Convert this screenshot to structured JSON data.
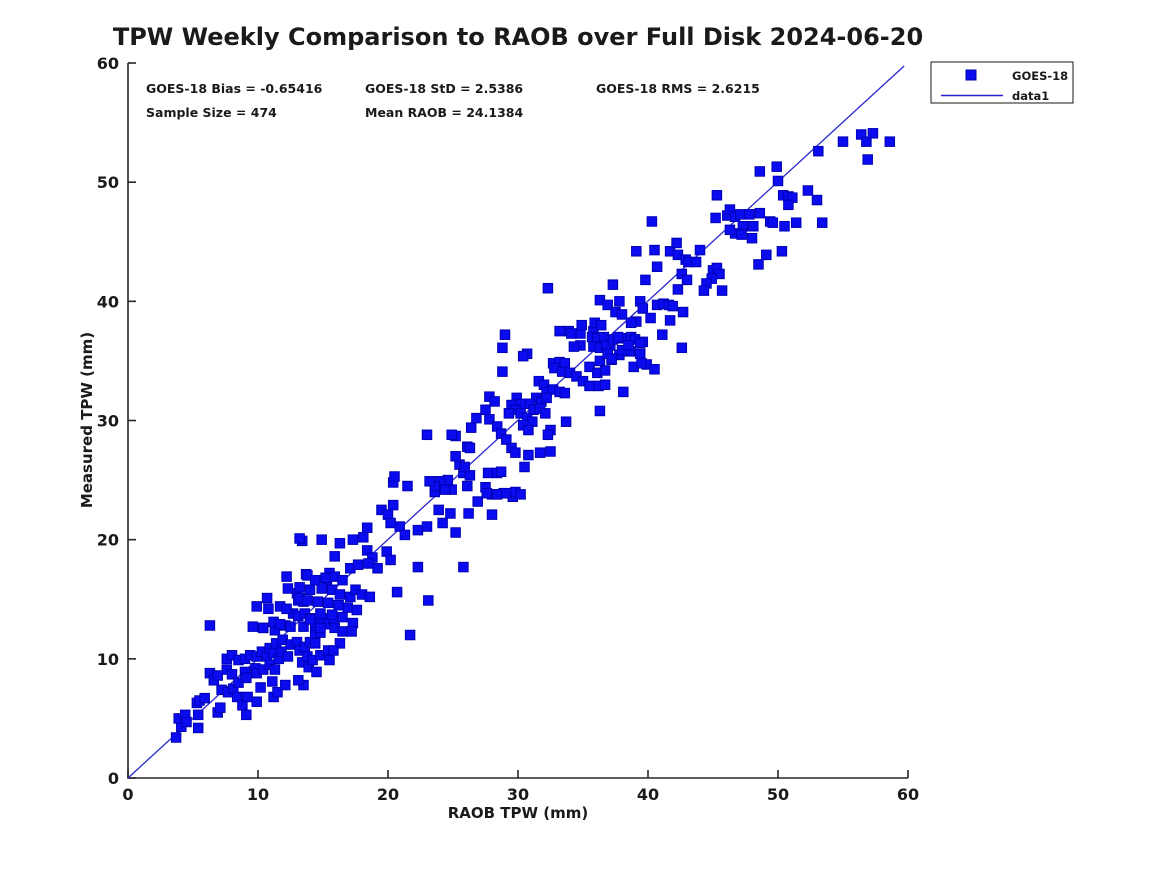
{
  "chart": {
    "title": "TPW Weekly Comparison to RAOB over Full Disk 2024-06-20"
  },
  "stats": {
    "bias": "GOES-18 Bias = -0.65416",
    "std": "GOES-18 StD = 2.5386",
    "rms": "GOES-18 RMS = 2.6215",
    "sample_size": "Sample Size = 474",
    "mean_raob": "Mean RAOB = 24.1384"
  },
  "legend": [
    {
      "label": "GOES-18",
      "marker": "square"
    },
    {
      "label": "data1",
      "marker": "line"
    }
  ],
  "colors": {
    "marker_fill": "#0b0bf0",
    "marker_edge": "#0000b4",
    "line": "#2727cf",
    "axis": "#262626",
    "text": "#1a1a1a"
  },
  "axes": {
    "x": {
      "label": "RAOB TPW (mm)",
      "min": 0,
      "max": 60,
      "ticks": [
        0,
        10,
        20,
        30,
        40,
        50,
        60
      ]
    },
    "y": {
      "label": "Measured TPW (mm)",
      "min": 0,
      "max": 60,
      "ticks": [
        0,
        10,
        20,
        30,
        40,
        50,
        60
      ]
    }
  },
  "chart_data": {
    "type": "scatter",
    "title": "TPW Weekly Comparison to RAOB over Full Disk 2024-06-20",
    "xlabel": "RAOB TPW (mm)",
    "ylabel": "Measured TPW (mm)",
    "xlim": [
      0,
      60
    ],
    "ylim": [
      0,
      60
    ],
    "grid": false,
    "legend_position": "top-right-outside",
    "series_name": "GOES-18",
    "identity_line": {
      "name": "data1",
      "x": [
        0,
        59.7
      ],
      "y": [
        0,
        59.75
      ]
    },
    "points": [
      [
        3.7,
        3.4
      ],
      [
        4.1,
        4.3
      ],
      [
        3.9,
        5.0
      ],
      [
        4.4,
        5.3
      ],
      [
        4.5,
        4.7
      ],
      [
        5.4,
        4.2
      ],
      [
        5.4,
        5.3
      ],
      [
        5.3,
        6.3
      ],
      [
        5.5,
        6.5
      ],
      [
        5.9,
        6.7
      ],
      [
        6.3,
        8.8
      ],
      [
        6.6,
        8.2
      ],
      [
        6.9,
        8.6
      ],
      [
        6.9,
        5.5
      ],
      [
        7.1,
        5.9
      ],
      [
        7.2,
        7.4
      ],
      [
        7.6,
        9.1
      ],
      [
        7.6,
        10.0
      ],
      [
        7.7,
        7.2
      ],
      [
        8.0,
        8.7
      ],
      [
        8.0,
        10.3
      ],
      [
        8.1,
        7.5
      ],
      [
        8.4,
        6.8
      ],
      [
        8.5,
        8.0
      ],
      [
        8.5,
        9.9
      ],
      [
        8.8,
        6.1
      ],
      [
        9.0,
        8.9
      ],
      [
        9.0,
        10.0
      ],
      [
        9.1,
        8.4
      ],
      [
        9.1,
        5.3
      ],
      [
        9.2,
        6.8
      ],
      [
        9.4,
        10.3
      ],
      [
        9.8,
        9.2
      ],
      [
        9.9,
        8.8
      ],
      [
        9.9,
        10.2
      ],
      [
        9.9,
        6.4
      ],
      [
        10.2,
        7.6
      ],
      [
        10.3,
        10.6
      ],
      [
        10.4,
        9.1
      ],
      [
        10.4,
        12.6
      ],
      [
        10.7,
        10.2
      ],
      [
        10.9,
        10.9
      ],
      [
        10.9,
        9.5
      ],
      [
        11.1,
        8.1
      ],
      [
        11.2,
        10.5
      ],
      [
        11.2,
        6.8
      ],
      [
        11.3,
        12.4
      ],
      [
        11.3,
        9.1
      ],
      [
        11.4,
        11.3
      ],
      [
        11.5,
        7.2
      ],
      [
        11.6,
        10.0
      ],
      [
        11.8,
        10.6
      ],
      [
        11.9,
        11.6
      ],
      [
        12.1,
        12.8
      ],
      [
        12.1,
        7.8
      ],
      [
        12.3,
        10.2
      ],
      [
        12.5,
        11.2
      ],
      [
        13.0,
        11.4
      ],
      [
        13.2,
        10.7
      ],
      [
        13.4,
        9.7
      ],
      [
        13.5,
        12.7
      ],
      [
        13.5,
        7.8
      ],
      [
        13.6,
        11.0
      ],
      [
        13.8,
        10.2
      ],
      [
        13.9,
        9.3
      ],
      [
        14.0,
        11.4
      ],
      [
        14.2,
        9.9
      ],
      [
        14.4,
        12.0
      ],
      [
        14.4,
        12.8
      ],
      [
        14.5,
        8.9
      ],
      [
        14.8,
        10.3
      ],
      [
        14.8,
        12.2
      ],
      [
        15.4,
        10.7
      ],
      [
        15.4,
        13.1
      ],
      [
        15.5,
        9.9
      ],
      [
        6.3,
        12.8
      ],
      [
        13.1,
        8.2
      ],
      [
        13.4,
        19.9
      ],
      [
        12.2,
        16.9
      ],
      [
        13.7,
        17.1
      ],
      [
        12.3,
        15.9
      ],
      [
        13.0,
        15.5
      ],
      [
        10.7,
        15.1
      ],
      [
        11.7,
        14.4
      ],
      [
        10.8,
        14.2
      ],
      [
        13.1,
        14.9
      ],
      [
        13.5,
        14.8
      ],
      [
        12.7,
        13.8
      ],
      [
        12.2,
        14.2
      ],
      [
        13.1,
        13.6
      ],
      [
        13.6,
        13.8
      ],
      [
        14.0,
        13.4
      ],
      [
        9.9,
        14.4
      ],
      [
        9.6,
        12.7
      ],
      [
        11.2,
        13.1
      ],
      [
        11.7,
        12.9
      ],
      [
        12.5,
        12.7
      ],
      [
        10.4,
        12.6
      ],
      [
        14.5,
        13.0
      ],
      [
        15.0,
        13.4
      ],
      [
        15.4,
        12.9
      ],
      [
        15.8,
        13.3
      ],
      [
        15.9,
        12.6
      ],
      [
        14.8,
        12.6
      ],
      [
        15.3,
        16.6
      ],
      [
        20.4,
        24.8
      ],
      [
        21.5,
        24.5
      ],
      [
        23.6,
        24.0
      ],
      [
        24.5,
        24.4
      ],
      [
        24.9,
        24.2
      ],
      [
        27.5,
        24.4
      ],
      [
        28.0,
        23.8
      ],
      [
        28.9,
        23.9
      ],
      [
        29.6,
        23.6
      ],
      [
        26.9,
        23.2
      ],
      [
        19.5,
        22.5
      ],
      [
        20.4,
        22.9
      ],
      [
        23.9,
        22.5
      ],
      [
        24.8,
        22.2
      ],
      [
        26.2,
        22.2
      ],
      [
        28.0,
        22.1
      ],
      [
        24.2,
        21.4
      ],
      [
        25.2,
        20.6
      ],
      [
        20.0,
        22.1
      ],
      [
        20.2,
        21.4
      ],
      [
        20.9,
        21.1
      ],
      [
        21.3,
        20.4
      ],
      [
        22.3,
        20.8
      ],
      [
        23.0,
        21.1
      ],
      [
        18.4,
        21.0
      ],
      [
        17.3,
        20.0
      ],
      [
        18.1,
        20.2
      ],
      [
        16.3,
        19.7
      ],
      [
        14.9,
        20.0
      ],
      [
        13.2,
        20.1
      ],
      [
        15.9,
        18.6
      ],
      [
        18.4,
        19.1
      ],
      [
        18.8,
        18.5
      ],
      [
        19.9,
        19.0
      ],
      [
        20.2,
        18.3
      ],
      [
        19.2,
        17.6
      ],
      [
        18.5,
        18.0
      ],
      [
        22.3,
        17.7
      ],
      [
        25.8,
        17.7
      ],
      [
        15.5,
        17.2
      ],
      [
        13.8,
        17.0
      ],
      [
        14.4,
        16.6
      ],
      [
        15.2,
        16.8
      ],
      [
        15.9,
        16.9
      ],
      [
        16.5,
        16.6
      ],
      [
        17.1,
        17.6
      ],
      [
        17.7,
        17.9
      ],
      [
        13.2,
        16.0
      ],
      [
        14.0,
        15.8
      ],
      [
        14.9,
        15.9
      ],
      [
        15.7,
        15.8
      ],
      [
        16.3,
        15.4
      ],
      [
        17.1,
        15.2
      ],
      [
        17.5,
        15.8
      ],
      [
        18.0,
        15.4
      ],
      [
        18.6,
        15.2
      ],
      [
        13.2,
        15.1
      ],
      [
        13.8,
        14.9
      ],
      [
        14.6,
        14.8
      ],
      [
        15.4,
        14.7
      ],
      [
        16.2,
        14.5
      ],
      [
        16.9,
        14.3
      ],
      [
        17.6,
        14.1
      ],
      [
        14.8,
        13.8
      ],
      [
        15.7,
        13.7
      ],
      [
        16.5,
        13.5
      ],
      [
        17.3,
        13.0
      ],
      [
        14.0,
        13.3
      ],
      [
        16.3,
        11.3
      ],
      [
        14.4,
        11.3
      ],
      [
        15.8,
        10.7
      ],
      [
        21.7,
        12.0
      ],
      [
        23.1,
        14.9
      ],
      [
        20.7,
        15.6
      ],
      [
        16.5,
        12.3
      ],
      [
        17.2,
        12.3
      ],
      [
        29.0,
        37.2
      ],
      [
        28.8,
        36.1
      ],
      [
        28.8,
        34.1
      ],
      [
        30.7,
        35.6
      ],
      [
        30.4,
        35.4
      ],
      [
        33.9,
        37.5
      ],
      [
        34.8,
        37.3
      ],
      [
        35.8,
        37.5
      ],
      [
        36.6,
        36.8
      ],
      [
        36.2,
        36.3
      ],
      [
        37.1,
        36.3
      ],
      [
        38.0,
        36.9
      ],
      [
        38.9,
        36.8
      ],
      [
        39.6,
        36.6
      ],
      [
        38.6,
        35.8
      ],
      [
        39.4,
        35.6
      ],
      [
        39.9,
        34.7
      ],
      [
        38.9,
        34.5
      ],
      [
        37.8,
        35.5
      ],
      [
        37.2,
        35.1
      ],
      [
        36.3,
        35.0
      ],
      [
        35.5,
        34.5
      ],
      [
        36.1,
        34.0
      ],
      [
        36.7,
        34.2
      ],
      [
        32.7,
        34.8
      ],
      [
        33.2,
        34.9
      ],
      [
        33.6,
        34.8
      ],
      [
        32.8,
        34.4
      ],
      [
        33.4,
        34.1
      ],
      [
        34.0,
        34.0
      ],
      [
        34.5,
        33.7
      ],
      [
        35.0,
        33.3
      ],
      [
        35.5,
        32.9
      ],
      [
        36.2,
        32.9
      ],
      [
        36.7,
        33.0
      ],
      [
        38.1,
        32.4
      ],
      [
        36.3,
        30.8
      ],
      [
        31.6,
        33.3
      ],
      [
        32.0,
        33.0
      ],
      [
        32.2,
        32.4
      ],
      [
        32.7,
        32.6
      ],
      [
        33.2,
        32.4
      ],
      [
        33.6,
        32.3
      ],
      [
        31.4,
        31.9
      ],
      [
        31.8,
        31.6
      ],
      [
        32.2,
        31.9
      ],
      [
        30.9,
        31.4
      ],
      [
        31.2,
        30.9
      ],
      [
        31.7,
        31.0
      ],
      [
        32.1,
        30.6
      ],
      [
        29.9,
        31.9
      ],
      [
        30.2,
        31.4
      ],
      [
        29.5,
        31.3
      ],
      [
        29.8,
        30.9
      ],
      [
        29.3,
        30.6
      ],
      [
        30.2,
        30.6
      ],
      [
        30.7,
        30.2
      ],
      [
        31.1,
        29.9
      ],
      [
        30.4,
        29.6
      ],
      [
        30.8,
        29.2
      ],
      [
        27.8,
        32.0
      ],
      [
        28.2,
        31.6
      ],
      [
        27.5,
        30.9
      ],
      [
        27.8,
        30.1
      ],
      [
        28.4,
        29.5
      ],
      [
        28.7,
        28.9
      ],
      [
        29.1,
        28.4
      ],
      [
        29.5,
        27.7
      ],
      [
        29.8,
        27.3
      ],
      [
        26.8,
        30.2
      ],
      [
        26.4,
        29.4
      ],
      [
        26.1,
        27.8
      ],
      [
        26.3,
        27.7
      ],
      [
        25.2,
        28.7
      ],
      [
        24.9,
        28.8
      ],
      [
        25.5,
        26.3
      ],
      [
        25.2,
        27.0
      ],
      [
        25.8,
        25.6
      ],
      [
        26.3,
        25.4
      ],
      [
        24.6,
        25.0
      ],
      [
        24.0,
        24.9
      ],
      [
        24.4,
        24.2
      ],
      [
        23.6,
        24.5
      ],
      [
        23.2,
        24.9
      ],
      [
        32.5,
        29.2
      ],
      [
        32.3,
        28.8
      ],
      [
        33.7,
        29.9
      ],
      [
        31.7,
        27.3
      ],
      [
        32.5,
        27.4
      ],
      [
        30.8,
        27.1
      ],
      [
        30.5,
        26.1
      ],
      [
        27.7,
        25.6
      ],
      [
        28.4,
        25.6
      ],
      [
        28.7,
        25.7
      ],
      [
        27.6,
        23.9
      ],
      [
        28.4,
        23.8
      ],
      [
        29.1,
        23.9
      ],
      [
        29.8,
        24.0
      ],
      [
        30.2,
        23.8
      ],
      [
        26.1,
        24.5
      ],
      [
        45.3,
        48.9
      ],
      [
        45.2,
        47.0
      ],
      [
        46.1,
        47.2
      ],
      [
        40.3,
        46.7
      ],
      [
        39.1,
        44.2
      ],
      [
        40.5,
        44.3
      ],
      [
        40.7,
        42.9
      ],
      [
        41.7,
        44.2
      ],
      [
        42.2,
        44.9
      ],
      [
        42.3,
        43.9
      ],
      [
        42.9,
        43.5
      ],
      [
        43.1,
        43.3
      ],
      [
        43.7,
        43.3
      ],
      [
        44.0,
        44.3
      ],
      [
        45.0,
        42.6
      ],
      [
        45.3,
        42.8
      ],
      [
        45.5,
        42.3
      ],
      [
        44.9,
        41.9
      ],
      [
        44.5,
        41.5
      ],
      [
        44.3,
        40.9
      ],
      [
        45.7,
        40.9
      ],
      [
        39.8,
        41.8
      ],
      [
        37.3,
        41.4
      ],
      [
        42.6,
        42.3
      ],
      [
        43.0,
        41.8
      ],
      [
        42.3,
        41.0
      ],
      [
        36.3,
        40.1
      ],
      [
        36.9,
        39.7
      ],
      [
        37.8,
        40.0
      ],
      [
        37.5,
        39.1
      ],
      [
        38.0,
        38.9
      ],
      [
        39.4,
        40.0
      ],
      [
        39.6,
        39.4
      ],
      [
        40.2,
        38.6
      ],
      [
        40.7,
        39.7
      ],
      [
        41.2,
        39.8
      ],
      [
        41.6,
        39.7
      ],
      [
        41.9,
        39.6
      ],
      [
        42.7,
        39.1
      ],
      [
        41.7,
        38.4
      ],
      [
        35.9,
        38.2
      ],
      [
        36.4,
        38.0
      ],
      [
        34.9,
        38.0
      ],
      [
        34.1,
        37.3
      ],
      [
        34.8,
        36.3
      ],
      [
        34.3,
        36.2
      ],
      [
        33.2,
        37.5
      ],
      [
        35.7,
        37.0
      ],
      [
        36.1,
        36.9
      ],
      [
        36.6,
        37.0
      ],
      [
        35.8,
        36.2
      ],
      [
        36.3,
        36.1
      ],
      [
        36.8,
        36.3
      ],
      [
        37.3,
        36.8
      ],
      [
        37.7,
        37.0
      ],
      [
        36.9,
        35.6
      ],
      [
        37.2,
        35.2
      ],
      [
        38.0,
        35.9
      ],
      [
        38.7,
        37.0
      ],
      [
        39.0,
        36.8
      ],
      [
        38.5,
        36.3
      ],
      [
        39.1,
        38.3
      ],
      [
        38.7,
        38.2
      ],
      [
        41.1,
        37.2
      ],
      [
        39.4,
        36.5
      ],
      [
        42.6,
        36.1
      ],
      [
        55.0,
        53.4
      ],
      [
        56.4,
        54.0
      ],
      [
        56.8,
        53.4
      ],
      [
        57.3,
        54.1
      ],
      [
        58.6,
        53.4
      ],
      [
        56.9,
        51.9
      ],
      [
        53.1,
        52.6
      ],
      [
        49.9,
        51.3
      ],
      [
        48.6,
        50.9
      ],
      [
        50.0,
        50.1
      ],
      [
        52.3,
        49.3
      ],
      [
        50.4,
        48.9
      ],
      [
        50.8,
        48.8
      ],
      [
        51.1,
        48.7
      ],
      [
        50.8,
        48.1
      ],
      [
        53.0,
        48.5
      ],
      [
        46.3,
        47.7
      ],
      [
        46.7,
        47.1
      ],
      [
        47.1,
        47.3
      ],
      [
        47.8,
        47.3
      ],
      [
        48.6,
        47.4
      ],
      [
        47.3,
        46.3
      ],
      [
        48.1,
        46.3
      ],
      [
        49.4,
        46.7
      ],
      [
        49.6,
        46.6
      ],
      [
        50.5,
        46.3
      ],
      [
        51.4,
        46.6
      ],
      [
        53.4,
        46.6
      ],
      [
        46.7,
        45.7
      ],
      [
        47.2,
        45.6
      ],
      [
        48.0,
        45.3
      ],
      [
        49.1,
        43.9
      ],
      [
        50.3,
        44.2
      ],
      [
        48.5,
        43.1
      ],
      [
        46.3,
        46.0
      ],
      [
        39.5,
        34.8
      ],
      [
        40.5,
        34.3
      ],
      [
        23.0,
        28.8
      ],
      [
        20.5,
        25.3
      ],
      [
        25.9,
        26.1
      ],
      [
        32.3,
        41.1
      ]
    ]
  }
}
